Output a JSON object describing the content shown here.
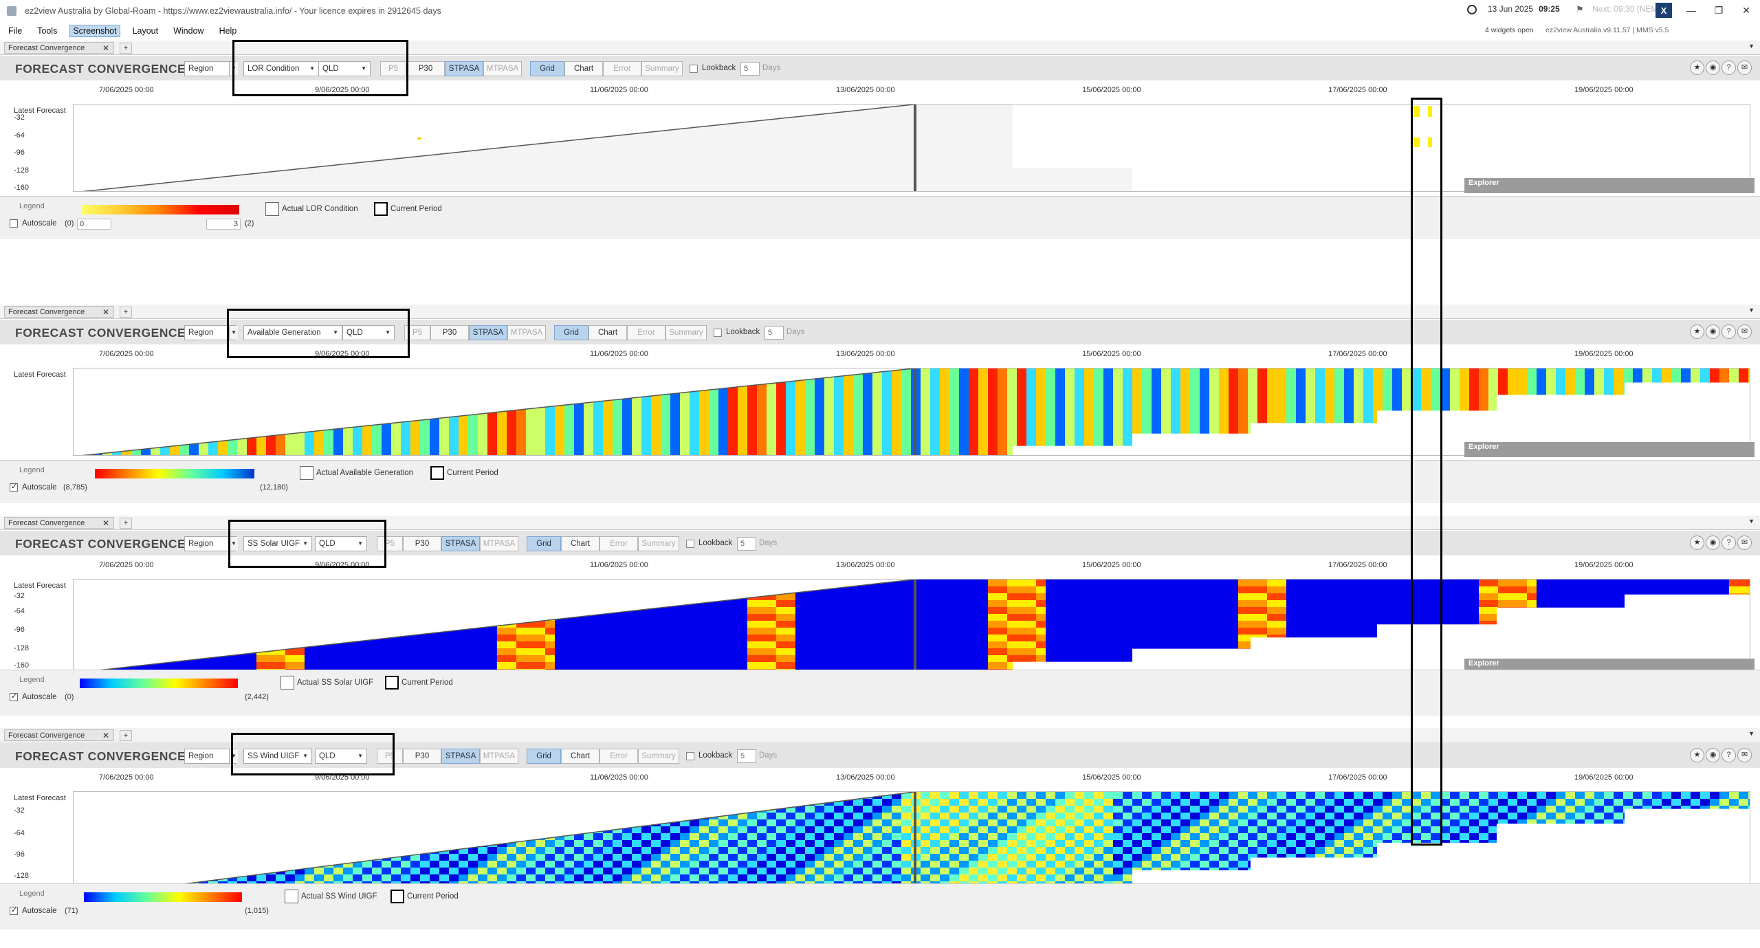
{
  "window": {
    "title": "ez2view Australia by Global-Roam - https://www.ez2viewaustralia.info/ - Your licence expires in 2912645 days",
    "date": "13 Jun 2025",
    "time": "09:25",
    "next": "Next: 09:30 (NEM)",
    "widgets_open": "4 widgets open",
    "version": "ez2view Australia v9.11.57 | MMS v5.5",
    "logo": "X"
  },
  "menu": [
    "File",
    "Tools",
    "Screenshot",
    "Layout",
    "Window",
    "Help"
  ],
  "common": {
    "tab_label": "Forecast Convergence",
    "tab_close": "✕",
    "tab_add": "+",
    "heading": "FORECAST CONVERGENCE",
    "region_label": "Region",
    "buttons": [
      "P5",
      "P30",
      "STPASA",
      "MTPASA",
      "Grid",
      "Chart",
      "Error",
      "Summary"
    ],
    "lookback_label": "Lookback",
    "lookback_value": "5",
    "days_label": "Days",
    "x_ticks": [
      "7/06/2025 00:00",
      "9/06/2025 00:00",
      "11/06/2025 00:00",
      "13/06/2025 00:00",
      "15/06/2025 00:00",
      "17/06/2025 00:00",
      "19/06/2025 00:00"
    ],
    "latest_forecast": "Latest Forecast",
    "y_ticks": [
      "-32",
      "-64",
      "-96",
      "-128",
      "-160"
    ],
    "explorer": "Explorer",
    "legend_label": "Legend",
    "autoscale_label": "Autoscale",
    "current_period": "Current Period",
    "icons": [
      "star-icon",
      "camera-icon",
      "help-icon",
      "comment-icon"
    ]
  },
  "widgets": [
    {
      "metric": "LOR Condition",
      "region": "QLD",
      "actual_label": "Actual LOR Condition",
      "autoscale_checked": false,
      "legend_min": "(0)",
      "legend_max": "(2)",
      "min_input": "0",
      "max_input": "3",
      "colors": [
        "#ffff66",
        "#ffcc33",
        "#ff8000",
        "#ff0000",
        "#dd0000"
      ]
    },
    {
      "metric": "Available Generation",
      "region": "QLD",
      "actual_label": "Actual Available Generation",
      "autoscale_checked": true,
      "legend_min": "(8,785)",
      "legend_max": "(12,180)",
      "colors": [
        "#ff0000",
        "#ff8000",
        "#ffff00",
        "#66ff99",
        "#00ccff",
        "#0033cc"
      ]
    },
    {
      "metric": "SS Solar UIGF",
      "region": "QLD",
      "actual_label": "Actual SS Solar UIGF",
      "autoscale_checked": true,
      "legend_min": "(0)",
      "legend_max": "(2,442)",
      "colors": [
        "#0000ff",
        "#00ccff",
        "#66ff99",
        "#ffff00",
        "#ff8000",
        "#ff0000"
      ]
    },
    {
      "metric": "SS Wind UIGF",
      "region": "QLD",
      "actual_label": "Actual SS Wind UIGF",
      "autoscale_checked": true,
      "legend_min": "(71)",
      "legend_max": "(1,015)",
      "colors": [
        "#0000ff",
        "#00ccff",
        "#66ff99",
        "#ffff00",
        "#ff8000",
        "#ff0000"
      ]
    }
  ]
}
